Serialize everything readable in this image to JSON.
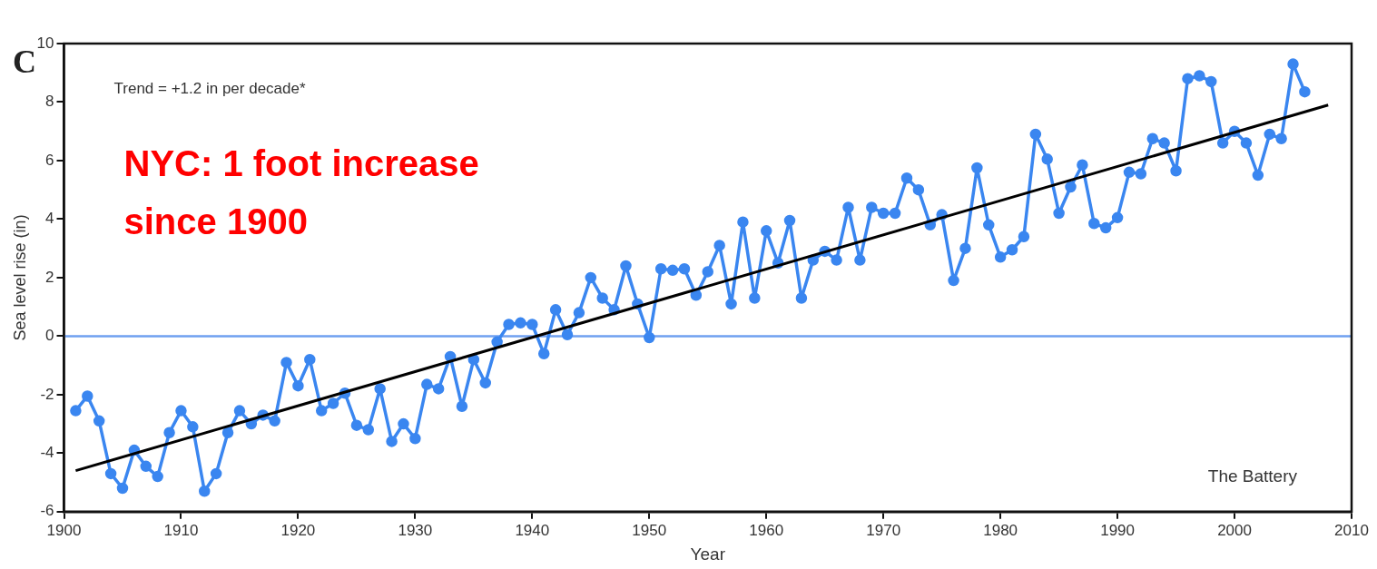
{
  "chart_data": {
    "type": "line",
    "xlabel": "Year",
    "ylabel": "Sea level rise (in)",
    "xlim": [
      1900,
      2010
    ],
    "xticks": [
      1900,
      1910,
      1920,
      1930,
      1940,
      1950,
      1960,
      1970,
      1980,
      1990,
      2000,
      2010
    ],
    "ylim": [
      -6,
      10
    ],
    "yticks": [
      -6,
      -4,
      -2,
      0,
      2,
      4,
      6,
      8,
      10
    ],
    "grid": false,
    "marker": "circle",
    "x": [
      1901,
      1902,
      1903,
      1904,
      1905,
      1906,
      1907,
      1908,
      1909,
      1910,
      1911,
      1912,
      1913,
      1914,
      1915,
      1916,
      1917,
      1918,
      1919,
      1920,
      1921,
      1922,
      1923,
      1924,
      1925,
      1926,
      1927,
      1928,
      1929,
      1930,
      1931,
      1932,
      1933,
      1934,
      1935,
      1936,
      1937,
      1938,
      1939,
      1940,
      1941,
      1942,
      1943,
      1944,
      1945,
      1946,
      1947,
      1948,
      1949,
      1950,
      1951,
      1952,
      1953,
      1954,
      1955,
      1956,
      1957,
      1958,
      1959,
      1960,
      1961,
      1962,
      1963,
      1964,
      1965,
      1966,
      1967,
      1968,
      1969,
      1970,
      1971,
      1972,
      1973,
      1974,
      1975,
      1976,
      1977,
      1978,
      1979,
      1980,
      1981,
      1982,
      1983,
      1984,
      1985,
      1986,
      1987,
      1988,
      1989,
      1990,
      1991,
      1992,
      1993,
      1994,
      1995,
      1996,
      1997,
      1998,
      1999,
      2000,
      2001,
      2002,
      2003,
      2004,
      2005,
      2006
    ],
    "series": [
      {
        "color": "#3a86f0",
        "values": [
          -2.55,
          -2.05,
          -2.9,
          -4.7,
          -5.2,
          -3.9,
          -4.45,
          -4.8,
          -3.3,
          -2.55,
          -3.1,
          -5.3,
          -4.7,
          -3.3,
          -2.55,
          -3.0,
          -2.7,
          -2.9,
          -0.9,
          -1.7,
          -0.8,
          -2.55,
          -2.3,
          -1.95,
          -3.05,
          -3.2,
          -1.8,
          -3.6,
          -3.0,
          -3.5,
          -1.65,
          -1.8,
          -0.7,
          -2.4,
          -0.8,
          -1.6,
          -0.2,
          0.4,
          0.45,
          0.4,
          -0.6,
          0.9,
          0.05,
          0.8,
          2.0,
          1.3,
          0.9,
          2.4,
          1.1,
          -0.05,
          2.3,
          2.25,
          2.3,
          1.4,
          2.2,
          3.1,
          1.1,
          3.9,
          1.3,
          3.6,
          2.5,
          3.95,
          1.3,
          2.6,
          2.9,
          2.6,
          4.4,
          2.6,
          4.4,
          4.2,
          4.2,
          5.4,
          5.0,
          3.8,
          4.15,
          1.9,
          3.0,
          5.75,
          3.8,
          2.7,
          2.95,
          3.4,
          6.9,
          6.05,
          4.2,
          5.1,
          5.85,
          3.85,
          3.7,
          4.05,
          5.6,
          5.55,
          6.75,
          6.6,
          5.65,
          8.8,
          8.9,
          8.7,
          6.6,
          7.0,
          6.6,
          5.5,
          6.9,
          6.75,
          9.3,
          8.35
        ]
      },
      {
        "type": "line",
        "x": [
          1901,
          2008
        ],
        "values": [
          -4.6,
          7.9
        ],
        "color": "#000000",
        "marker": "none"
      }
    ],
    "ref_lines": [
      {
        "axis": "y",
        "value": 0,
        "color": "#6fa0f0"
      }
    ],
    "annotations": [
      "C",
      "Trend = +1.2 in per decade*",
      "NYC: 1 foot increase since 1900",
      "The Battery"
    ]
  }
}
